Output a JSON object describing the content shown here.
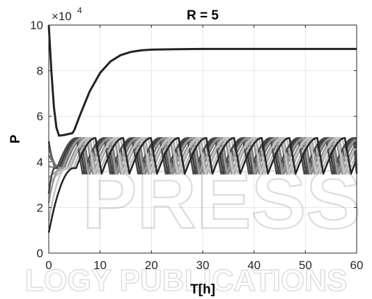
{
  "chart_data": {
    "type": "line",
    "title": "R = 5",
    "xlabel": "T[h]",
    "ylabel": "P",
    "xlim": [
      0,
      60
    ],
    "ylim": [
      0,
      100000
    ],
    "x_ticks": [
      0,
      10,
      20,
      30,
      40,
      50,
      60
    ],
    "y_ticks": [
      0,
      20000,
      40000,
      60000,
      80000,
      100000
    ],
    "x_tick_labels": [
      "0",
      "10",
      "20",
      "30",
      "40",
      "50",
      "60"
    ],
    "y_tick_labels": [
      "0",
      "2",
      "4",
      "6",
      "8",
      "10"
    ],
    "y_exponent_label": {
      "base": "×10",
      "power": "4"
    },
    "grid": true,
    "legend": "none",
    "stable_trajectory": {
      "color": "#222222",
      "points": [
        [
          0,
          100000
        ],
        [
          0.5,
          80000
        ],
        [
          1,
          64000
        ],
        [
          1.5,
          55000
        ],
        [
          2,
          51500
        ],
        [
          3,
          51800
        ],
        [
          4,
          52300
        ],
        [
          4.6,
          52600
        ],
        [
          5,
          54000
        ],
        [
          6,
          60000
        ],
        [
          8,
          71000
        ],
        [
          10,
          79000
        ],
        [
          12,
          84000
        ],
        [
          14,
          86800
        ],
        [
          16,
          88200
        ],
        [
          18,
          88900
        ],
        [
          20,
          89200
        ],
        [
          25,
          89400
        ],
        [
          30,
          89500
        ],
        [
          40,
          89500
        ],
        [
          50,
          89500
        ],
        [
          60,
          89500
        ]
      ]
    },
    "oscillating_trajectories": {
      "count": 10,
      "peak": 50500,
      "trough": 34800,
      "period_h": 5.4,
      "onset_h": [
        1.6,
        2.0,
        2.6,
        3.2,
        3.8,
        4.4,
        1.2,
        2.3,
        3.5,
        4.9
      ],
      "initial_values": [
        49000,
        47000,
        43000,
        38000,
        33000,
        30000,
        26000,
        22000,
        14000,
        9000
      ],
      "colors": [
        "#3a3a3a",
        "#555555",
        "#7a7a7a",
        "#8e8e8e",
        "#a6a6a6",
        "#bdbdbd",
        "#4a4a4a",
        "#9a9a9a",
        "#c6c6c6",
        "#262626"
      ]
    },
    "watermark": [
      "PRESS",
      "LOGY PUBLICATIONS"
    ]
  }
}
